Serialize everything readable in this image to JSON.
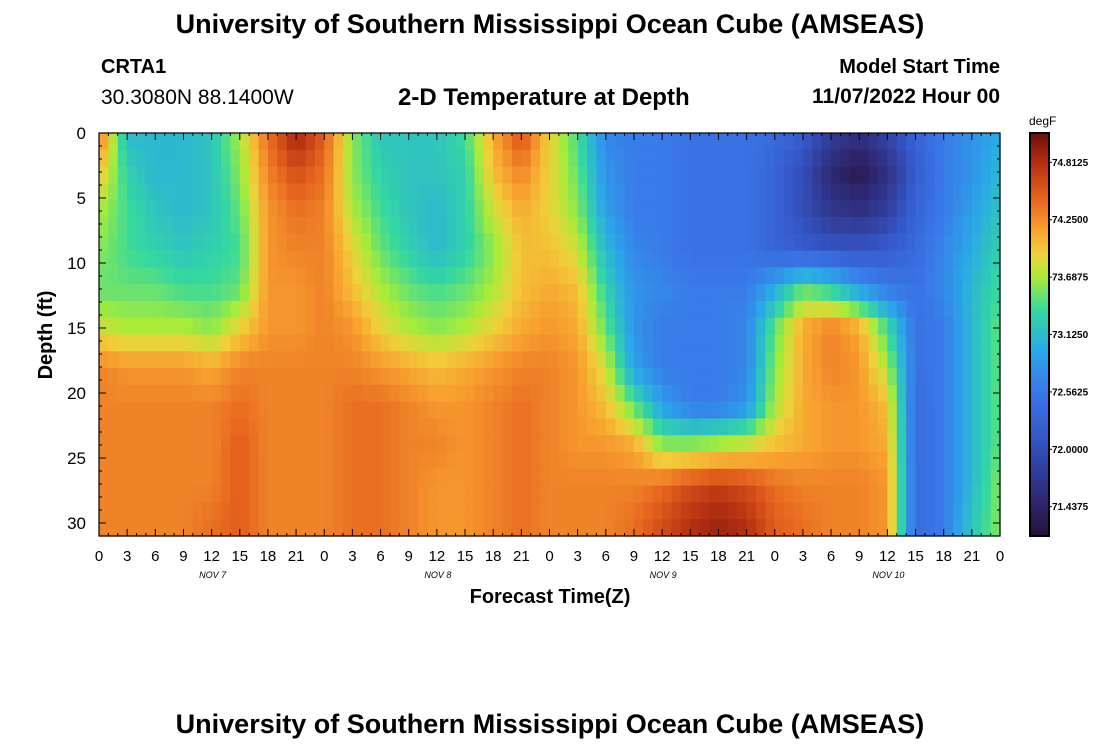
{
  "header": {
    "title": "University of Southern Mississippi Ocean Cube (AMSEAS)",
    "station_id": "CRTA1",
    "station_coords": "30.3080N  88.1400W",
    "plot_title": "2-D Temperature at Depth",
    "model_label": "Model Start Time",
    "model_time": "11/07/2022 Hour 00"
  },
  "footer": {
    "title": "University of Southern Mississippi Ocean Cube (AMSEAS)"
  },
  "chart_data": {
    "type": "heatmap",
    "title": "2-D Temperature at Depth",
    "xlabel": "Forecast Time(Z)",
    "ylabel": "Depth (ft)",
    "colorbar_unit": "degF",
    "colorbar_ticks": [
      "74.8125",
      "74.2500",
      "73.6875",
      "73.1250",
      "72.5625",
      "72.0000",
      "71.4375"
    ],
    "colorbar_range": [
      71.15,
      75.1
    ],
    "x_range_hours": [
      0,
      96
    ],
    "x_tick_step_hours": 3,
    "x_tick_labels": [
      "0",
      "3",
      "6",
      "9",
      "12",
      "15",
      "18",
      "21",
      "0",
      "3",
      "6",
      "9",
      "12",
      "15",
      "18",
      "21",
      "0",
      "3",
      "6",
      "9",
      "12",
      "15",
      "18",
      "21",
      "0",
      "3",
      "6",
      "9",
      "12",
      "15",
      "18",
      "21",
      "0"
    ],
    "day_labels": [
      {
        "label": "NOV 7",
        "hour": 12
      },
      {
        "label": "NOV 8",
        "hour": 36
      },
      {
        "label": "NOV 9",
        "hour": 60
      },
      {
        "label": "NOV 10",
        "hour": 84
      }
    ],
    "y_range_ft": [
      0,
      31
    ],
    "y_ticks": [
      0,
      5,
      10,
      15,
      20,
      25,
      30
    ],
    "temperature_degF_by_hour": {
      "depths_ft": [
        0,
        3,
        6,
        9,
        12,
        15,
        18,
        21,
        24,
        27,
        30
      ],
      "hours": [
        0,
        3,
        6,
        9,
        12,
        15,
        18,
        21,
        24,
        27,
        30,
        33,
        36,
        39,
        42,
        45,
        48,
        51,
        54,
        57,
        60,
        63,
        66,
        69,
        72,
        75,
        78,
        81,
        84,
        87,
        90,
        93,
        96
      ],
      "values": [
        [
          74.4,
          73.1,
          73.1,
          73.1,
          73.2,
          73.7,
          74.4,
          74.9,
          74.5,
          73.6,
          73.2,
          73.2,
          73.2,
          73.4,
          74.1,
          74.6,
          73.9,
          73.4,
          72.7,
          72.6,
          72.6,
          72.5,
          72.5,
          72.5,
          72.4,
          72.2,
          71.8,
          71.6,
          71.9,
          72.3,
          72.6,
          72.8,
          73.0
        ],
        [
          74.0,
          73.3,
          73.1,
          73.1,
          73.2,
          73.6,
          74.3,
          74.6,
          74.4,
          73.6,
          73.3,
          73.2,
          73.2,
          73.3,
          74.0,
          74.3,
          73.9,
          73.5,
          72.8,
          72.6,
          72.6,
          72.5,
          72.5,
          72.5,
          72.3,
          72.0,
          71.5,
          71.3,
          71.6,
          72.2,
          72.6,
          72.8,
          73.1
        ],
        [
          73.7,
          73.4,
          73.2,
          73.1,
          73.2,
          73.5,
          74.2,
          74.4,
          74.3,
          73.7,
          73.4,
          73.2,
          73.1,
          73.3,
          73.8,
          74.1,
          73.9,
          73.6,
          72.9,
          72.6,
          72.6,
          72.5,
          72.5,
          72.5,
          72.3,
          72.0,
          71.7,
          71.6,
          71.8,
          72.3,
          72.6,
          72.9,
          73.2
        ],
        [
          73.6,
          73.4,
          73.3,
          73.2,
          73.3,
          73.4,
          74.2,
          74.3,
          74.3,
          73.9,
          73.5,
          73.3,
          73.1,
          73.3,
          73.6,
          74.0,
          74.0,
          73.8,
          73.1,
          72.7,
          72.6,
          72.5,
          72.5,
          72.5,
          72.3,
          72.2,
          72.1,
          72.1,
          72.2,
          72.4,
          72.7,
          73.0,
          73.3
        ],
        [
          73.5,
          73.5,
          73.5,
          73.4,
          73.4,
          73.5,
          74.2,
          74.2,
          74.3,
          74.0,
          73.7,
          73.5,
          73.4,
          73.5,
          73.7,
          74.0,
          74.1,
          74.0,
          73.3,
          72.8,
          72.7,
          72.6,
          72.6,
          72.6,
          73.0,
          73.5,
          73.3,
          72.9,
          72.6,
          72.5,
          72.7,
          73.1,
          73.4
        ],
        [
          73.8,
          73.7,
          73.7,
          73.7,
          73.6,
          73.9,
          74.2,
          74.2,
          74.3,
          74.2,
          73.9,
          73.7,
          73.6,
          73.7,
          73.9,
          74.1,
          74.2,
          74.1,
          73.5,
          72.8,
          72.6,
          72.6,
          72.6,
          72.7,
          73.5,
          74.1,
          74.3,
          74.1,
          73.4,
          72.5,
          72.6,
          73.1,
          73.5
        ],
        [
          74.3,
          74.2,
          74.2,
          74.2,
          74.1,
          74.3,
          74.3,
          74.3,
          74.3,
          74.3,
          74.2,
          74.1,
          74.0,
          74.1,
          74.2,
          74.3,
          74.3,
          74.2,
          73.8,
          72.9,
          72.6,
          72.6,
          72.6,
          72.7,
          73.6,
          74.1,
          74.3,
          74.2,
          73.7,
          72.5,
          72.6,
          73.1,
          73.5
        ],
        [
          74.3,
          74.3,
          74.3,
          74.3,
          74.3,
          74.4,
          74.3,
          74.3,
          74.3,
          74.4,
          74.4,
          74.3,
          74.2,
          74.2,
          74.3,
          74.4,
          74.3,
          74.2,
          74.0,
          73.5,
          72.9,
          72.6,
          72.6,
          72.8,
          73.7,
          74.1,
          74.2,
          74.2,
          74.0,
          72.4,
          72.6,
          73.1,
          73.5
        ],
        [
          74.3,
          74.3,
          74.3,
          74.3,
          74.3,
          74.5,
          74.3,
          74.3,
          74.3,
          74.4,
          74.4,
          74.3,
          74.3,
          74.2,
          74.3,
          74.4,
          74.3,
          74.2,
          74.2,
          74.1,
          73.6,
          73.6,
          73.7,
          73.8,
          74.0,
          74.1,
          74.2,
          74.2,
          74.1,
          72.4,
          72.6,
          73.1,
          73.5
        ],
        [
          74.3,
          74.3,
          74.3,
          74.3,
          74.3,
          74.5,
          74.3,
          74.3,
          74.3,
          74.4,
          74.4,
          74.3,
          74.2,
          74.2,
          74.3,
          74.4,
          74.3,
          74.3,
          74.3,
          74.3,
          74.4,
          74.6,
          74.7,
          74.6,
          74.4,
          74.3,
          74.3,
          74.3,
          74.2,
          72.4,
          72.6,
          73.1,
          73.6
        ],
        [
          74.3,
          74.3,
          74.3,
          74.3,
          74.4,
          74.5,
          74.3,
          74.3,
          74.3,
          74.4,
          74.4,
          74.3,
          74.2,
          74.2,
          74.3,
          74.4,
          74.3,
          74.3,
          74.3,
          74.4,
          74.6,
          74.8,
          74.9,
          74.8,
          74.5,
          74.4,
          74.3,
          74.3,
          74.2,
          72.4,
          72.6,
          73.2,
          73.6
        ]
      ]
    }
  }
}
